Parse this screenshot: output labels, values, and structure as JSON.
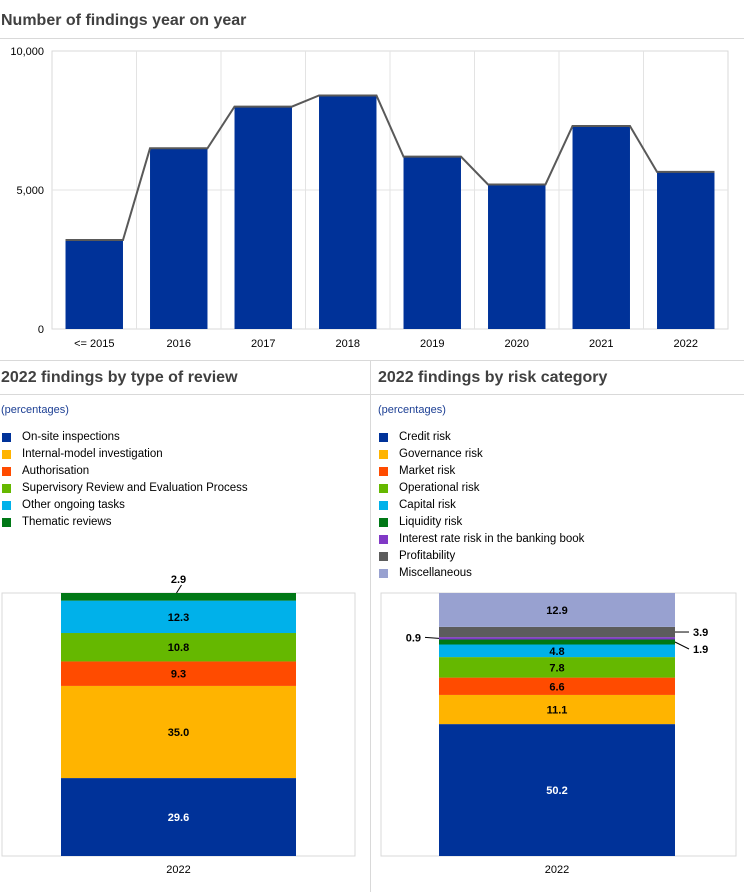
{
  "top": {
    "title": "Number of findings year on year"
  },
  "left_panel": {
    "title": "2022 findings by type of review",
    "subtitle": "(percentages)"
  },
  "right_panel": {
    "title": "2022 findings by risk category",
    "subtitle": "(percentages)"
  },
  "chart_data": [
    {
      "type": "bar",
      "title": "Number of findings year on year",
      "categories": [
        "<= 2015",
        "2016",
        "2017",
        "2018",
        "2019",
        "2020",
        "2021",
        "2022"
      ],
      "values": [
        3200,
        6500,
        8000,
        8400,
        6200,
        5200,
        7300,
        5650
      ],
      "overlay_line": true,
      "ylim": [
        0,
        10000
      ],
      "yticks": [
        "0",
        "5,000",
        "10,000"
      ],
      "grid": true,
      "bar_color": "#003299",
      "line_color": "#595959"
    },
    {
      "type": "bar",
      "stacked": true,
      "title": "2022 findings by type of review",
      "subtitle": "(percentages)",
      "categories": [
        "2022"
      ],
      "series": [
        {
          "name": "On-site inspections",
          "values": [
            29.6
          ],
          "label": "29.6",
          "color": "#003299"
        },
        {
          "name": "Internal-model investigation",
          "values": [
            35.0
          ],
          "label": "35.0",
          "color": "#ffb400"
        },
        {
          "name": "Authorisation",
          "values": [
            9.3
          ],
          "label": "9.3",
          "color": "#ff4b00"
        },
        {
          "name": "Supervisory Review and Evaluation Process",
          "values": [
            10.8
          ],
          "label": "10.8",
          "color": "#65b800"
        },
        {
          "name": "Other ongoing tasks",
          "values": [
            12.3
          ],
          "label": "12.3",
          "color": "#00b1ea"
        },
        {
          "name": "Thematic reviews",
          "values": [
            2.9
          ],
          "label": "2.9",
          "color": "#007816"
        }
      ]
    },
    {
      "type": "bar",
      "stacked": true,
      "title": "2022 findings by risk category",
      "subtitle": "(percentages)",
      "categories": [
        "2022"
      ],
      "series": [
        {
          "name": "Credit risk",
          "values": [
            50.2
          ],
          "label": "50.2",
          "color": "#003299"
        },
        {
          "name": "Governance risk",
          "values": [
            11.1
          ],
          "label": "11.1",
          "color": "#ffb400"
        },
        {
          "name": "Market risk",
          "values": [
            6.6
          ],
          "label": "6.6",
          "color": "#ff4b00"
        },
        {
          "name": "Operational risk",
          "values": [
            7.8
          ],
          "label": "7.8",
          "color": "#65b800"
        },
        {
          "name": "Capital risk",
          "values": [
            4.8
          ],
          "label": "4.8",
          "color": "#00b1ea"
        },
        {
          "name": "Liquidity risk",
          "values": [
            1.9
          ],
          "label": "1.9",
          "color": "#007816"
        },
        {
          "name": "Interest rate risk in the banking book",
          "values": [
            0.9
          ],
          "label": "0.9",
          "color": "#8139c6"
        },
        {
          "name": "Profitability",
          "values": [
            3.9
          ],
          "label": "3.9",
          "color": "#5c5c5c"
        },
        {
          "name": "Miscellaneous",
          "values": [
            12.9
          ],
          "label": "12.9",
          "color": "#98a1d0"
        }
      ]
    }
  ]
}
